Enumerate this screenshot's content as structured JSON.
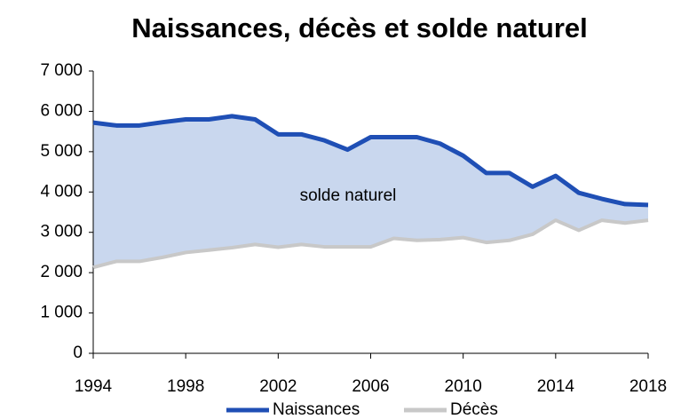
{
  "chart_data": {
    "type": "line",
    "title": "Naissances, décès et solde naturel",
    "annotation": "solde naturel",
    "x": [
      1994,
      1995,
      1996,
      1997,
      1998,
      1999,
      2000,
      2001,
      2002,
      2003,
      2004,
      2005,
      2006,
      2007,
      2008,
      2009,
      2010,
      2011,
      2012,
      2013,
      2014,
      2015,
      2016,
      2017,
      2018
    ],
    "series": [
      {
        "name": "Naissances",
        "color": "#1f4fb5",
        "values": [
          5720,
          5650,
          5650,
          5730,
          5800,
          5800,
          5880,
          5800,
          5430,
          5430,
          5280,
          5050,
          5360,
          5360,
          5360,
          5200,
          4900,
          4470,
          4470,
          4130,
          4400,
          3980,
          3830,
          3700,
          3680
        ]
      },
      {
        "name": "Décès",
        "color": "#c8c8c8",
        "values": [
          2130,
          2280,
          2280,
          2380,
          2500,
          2560,
          2620,
          2700,
          2630,
          2700,
          2640,
          2640,
          2640,
          2850,
          2800,
          2820,
          2870,
          2750,
          2800,
          2950,
          3300,
          3050,
          3300,
          3230,
          3300
        ]
      }
    ],
    "fill_color": "#c9d7ee",
    "xlim": [
      1994,
      2018
    ],
    "xticks": [
      1994,
      1998,
      2002,
      2006,
      2010,
      2014,
      2018
    ],
    "ylim": [
      0,
      7000
    ],
    "yticks": [
      0,
      {
        "value": 1000,
        "label": "1 000"
      },
      {
        "value": 2000,
        "label": "2 000"
      },
      {
        "value": 3000,
        "label": "3 000"
      },
      {
        "value": 4000,
        "label": "4 000"
      },
      {
        "value": 5000,
        "label": "5 000"
      },
      {
        "value": 6000,
        "label": "6 000"
      },
      {
        "value": 7000,
        "label": "7 000"
      }
    ]
  }
}
